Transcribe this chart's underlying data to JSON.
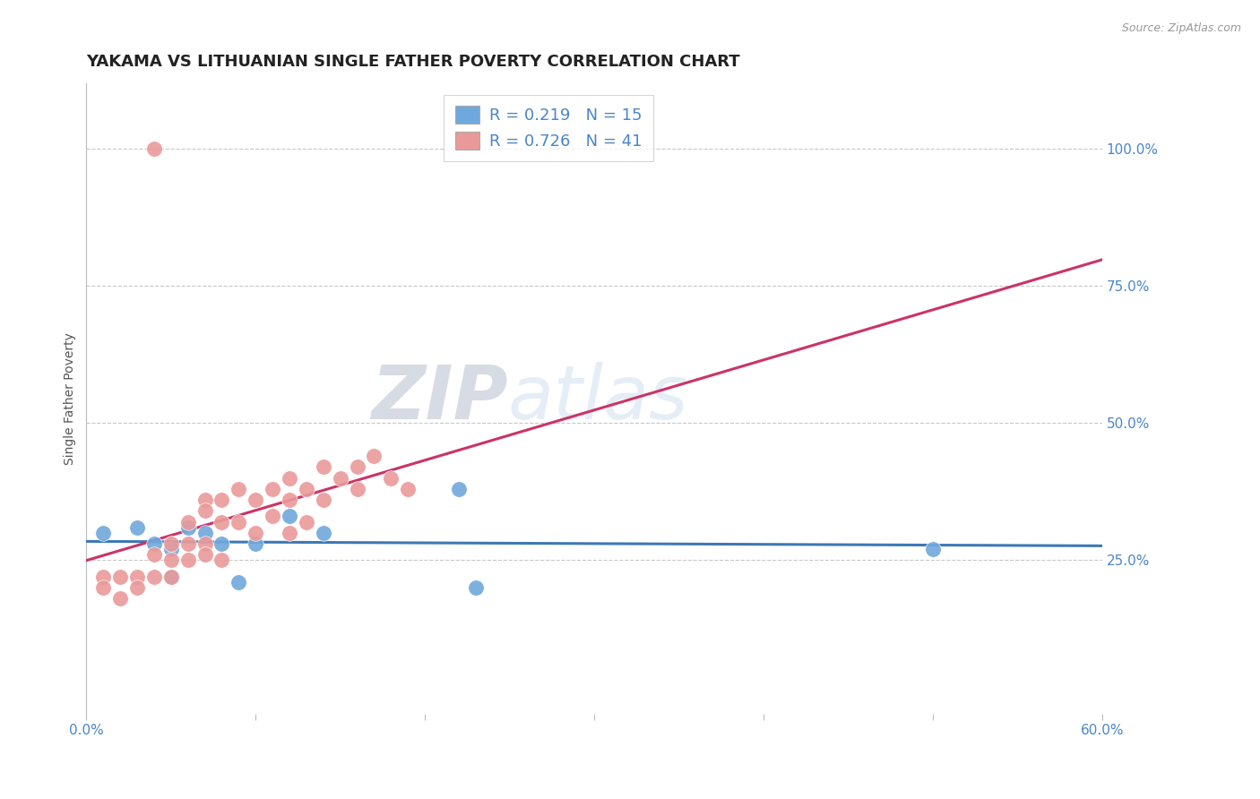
{
  "title": "YAKAMA VS LITHUANIAN SINGLE FATHER POVERTY CORRELATION CHART",
  "source_text": "Source: ZipAtlas.com",
  "ylabel": "Single Father Poverty",
  "watermark": "ZIPatlas",
  "xlim": [
    0.0,
    0.6
  ],
  "ylim": [
    -0.03,
    1.12
  ],
  "xticks": [
    0.0,
    0.1,
    0.2,
    0.3,
    0.4,
    0.5,
    0.6
  ],
  "xticklabels": [
    "0.0%",
    "",
    "",
    "",
    "",
    "",
    "60.0%"
  ],
  "yticks_right": [
    0.0,
    0.25,
    0.5,
    0.75,
    1.0
  ],
  "yticklabels_right": [
    "",
    "25.0%",
    "50.0%",
    "75.0%",
    "100.0%"
  ],
  "yakama_R": 0.219,
  "yakama_N": 15,
  "lithuanian_R": 0.726,
  "lithuanian_N": 41,
  "yakama_color": "#6fa8dc",
  "lithuanian_color": "#ea9999",
  "trendline_yakama_color": "#3d78b5",
  "trendline_lithuanian_color": "#cc3366",
  "legend_R_color": "#4a86c8",
  "yakama_scatter_x": [
    0.01,
    0.03,
    0.04,
    0.05,
    0.05,
    0.06,
    0.07,
    0.08,
    0.09,
    0.1,
    0.12,
    0.14,
    0.22,
    0.23,
    0.5
  ],
  "yakama_scatter_y": [
    0.3,
    0.31,
    0.28,
    0.27,
    0.22,
    0.31,
    0.3,
    0.28,
    0.21,
    0.28,
    0.33,
    0.3,
    0.38,
    0.2,
    0.27
  ],
  "lithuanian_scatter_x": [
    0.01,
    0.01,
    0.02,
    0.02,
    0.03,
    0.03,
    0.04,
    0.04,
    0.05,
    0.05,
    0.05,
    0.06,
    0.06,
    0.06,
    0.07,
    0.07,
    0.07,
    0.07,
    0.08,
    0.08,
    0.08,
    0.09,
    0.09,
    0.1,
    0.1,
    0.11,
    0.11,
    0.12,
    0.12,
    0.12,
    0.13,
    0.13,
    0.14,
    0.14,
    0.15,
    0.16,
    0.16,
    0.17,
    0.18,
    0.19,
    0.04
  ],
  "lithuanian_scatter_y": [
    0.22,
    0.2,
    0.22,
    0.18,
    0.22,
    0.2,
    0.26,
    0.22,
    0.28,
    0.25,
    0.22,
    0.32,
    0.28,
    0.25,
    0.36,
    0.34,
    0.28,
    0.26,
    0.36,
    0.32,
    0.25,
    0.38,
    0.32,
    0.36,
    0.3,
    0.38,
    0.33,
    0.4,
    0.36,
    0.3,
    0.38,
    0.32,
    0.42,
    0.36,
    0.4,
    0.42,
    0.38,
    0.44,
    0.4,
    0.38,
    1.0
  ],
  "grid_color": "#c8c8c8",
  "background_color": "#ffffff",
  "title_fontsize": 13,
  "axis_label_fontsize": 10,
  "tick_fontsize": 11,
  "legend_fontsize": 13,
  "watermark_fontsize": 60,
  "watermark_color": "#ccdcee",
  "watermark_alpha": 0.55
}
